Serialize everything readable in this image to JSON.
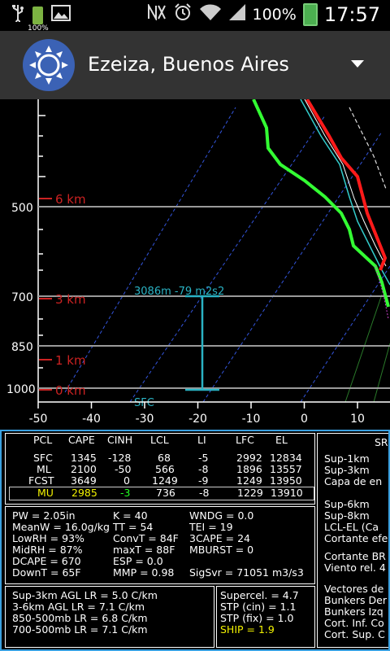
{
  "status_bar": {
    "left_icons": [
      "usb-icon",
      "battery-100-icon",
      "image-icon"
    ],
    "left_battery_label": "100%",
    "right_icons": [
      "nfc-icon",
      "alarm-icon",
      "wifi-icon",
      "signal-icon",
      "battery-icon"
    ],
    "battery_percent": "100%",
    "time": "17:57"
  },
  "app_bar": {
    "title": "Ezeiza, Buenos Aires",
    "icon": "sun-icon",
    "menu_icon": "dropdown-arrow-icon"
  },
  "sounding": {
    "pressure_labels": [
      "500",
      "700",
      "850",
      "1000"
    ],
    "height_labels": [
      "6 km",
      "3 km",
      "1 km",
      "0 km"
    ],
    "temperature_ticks": [
      "-50",
      "-40",
      "-30",
      "-20",
      "-10",
      "0",
      "10"
    ],
    "helicity_label": "3086m  -79 m2s2",
    "sfc_label": "SFC",
    "colors": {
      "temperature": "#ff1a1a",
      "dewpoint": "#33ff33",
      "wetbulb": "#33cccc",
      "virtual": "#ffffff",
      "height": "#cc2222",
      "parcel": "#2ab3c4"
    }
  },
  "parcel_table": {
    "headers": [
      "PCL",
      "CAPE",
      "CINH",
      "LCL",
      "LI",
      "LFC",
      "EL"
    ],
    "rows": [
      {
        "pcl": "SFC",
        "cape": "1345",
        "cinh": "-128",
        "lcl": "68",
        "li": "-5",
        "lfc": "2992",
        "el": "12834"
      },
      {
        "pcl": "ML",
        "cape": "2100",
        "cinh": "-50",
        "lcl": "566",
        "li": "-8",
        "lfc": "1896",
        "el": "13557"
      },
      {
        "pcl": "FCST",
        "cape": "3649",
        "cinh": "0",
        "lcl": "1249",
        "li": "-9",
        "lfc": "1249",
        "el": "13950"
      },
      {
        "pcl": "MU",
        "cape": "2985",
        "cinh": "-3",
        "lcl": "736",
        "li": "-8",
        "lfc": "1229",
        "el": "13910"
      }
    ]
  },
  "indices": {
    "col1": [
      "PW = 2.05in",
      "MeanW = 16.0g/kg",
      "LowRH = 93%",
      "MidRH = 87%",
      "DCAPE = 670",
      "DownT = 65F"
    ],
    "col2": [
      "K = 40",
      "TT = 54",
      "ConvT = 84F",
      "maxT = 88F",
      "ESP = 0.0",
      "MMP = 0.98"
    ],
    "col3": [
      "WNDG = 0.0",
      "TEI = 19",
      "3CAPE = 24",
      "MBURST = 0",
      "",
      "SigSvr = 71051 m3/s3"
    ]
  },
  "lapse_rates": [
    "Sup-3km AGL LR = 5.0 C/km",
    "3-6km AGL LR = 7.1 C/km",
    "850-500mb LR = 6.8 C/km",
    "700-500mb LR = 7.1 C/km"
  ],
  "composites": [
    "Supercel. = 4.7",
    "STP (cin) = 1.1",
    "STP (fix) = 1.0",
    "SHIP = 1.9"
  ],
  "right_panel": {
    "header": "SR",
    "group1": [
      "Sup-1km",
      "Sup-3km",
      "Capa de en"
    ],
    "group2": [
      "Sup-6km",
      "Sup-8km",
      "LCL-EL (Ca",
      "Cortante efe"
    ],
    "group3": [
      "Cortante BR",
      "Viento rel. 4"
    ],
    "group4": [
      "Vectores de",
      "Bunkers Der",
      "Bunkers Izq",
      "Cort. Inf. Co",
      "Cort. Sup. C"
    ]
  }
}
